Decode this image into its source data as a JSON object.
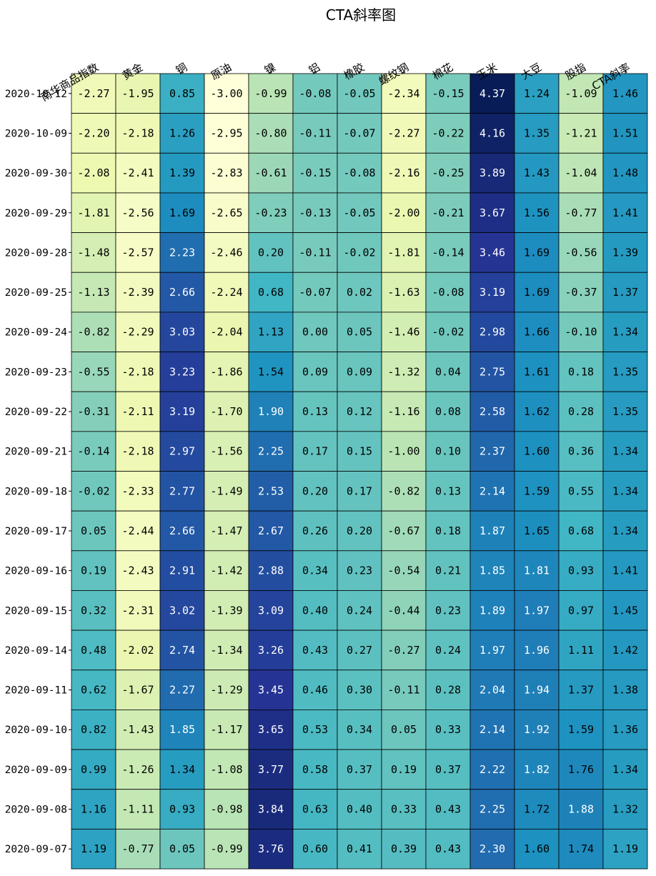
{
  "chart_data": {
    "type": "heatmap",
    "title": "CTA斜率图",
    "columns": [
      "南华商品指数",
      "黄金",
      "铜",
      "原油",
      "镍",
      "铝",
      "橡胶",
      "螺纹钢",
      "棉花",
      "玉米",
      "大豆",
      "股指",
      "CTA斜率"
    ],
    "rows": [
      "2020-10-12",
      "2020-10-09",
      "2020-09-30",
      "2020-09-29",
      "2020-09-28",
      "2020-09-25",
      "2020-09-24",
      "2020-09-23",
      "2020-09-22",
      "2020-09-21",
      "2020-09-18",
      "2020-09-17",
      "2020-09-16",
      "2020-09-15",
      "2020-09-14",
      "2020-09-11",
      "2020-09-10",
      "2020-09-09",
      "2020-09-08",
      "2020-09-07"
    ],
    "values": [
      [
        -2.27,
        -1.95,
        0.85,
        -3.0,
        -0.99,
        -0.08,
        -0.05,
        -2.34,
        -0.15,
        4.37,
        1.24,
        -1.09,
        1.46
      ],
      [
        -2.2,
        -2.18,
        1.26,
        -2.95,
        -0.8,
        -0.11,
        -0.07,
        -2.27,
        -0.22,
        4.16,
        1.35,
        -1.21,
        1.51
      ],
      [
        -2.08,
        -2.41,
        1.39,
        -2.83,
        -0.61,
        -0.15,
        -0.08,
        -2.16,
        -0.25,
        3.89,
        1.43,
        -1.04,
        1.48
      ],
      [
        -1.81,
        -2.56,
        1.69,
        -2.65,
        -0.23,
        -0.13,
        -0.05,
        -2.0,
        -0.21,
        3.67,
        1.56,
        -0.77,
        1.41
      ],
      [
        -1.48,
        -2.57,
        2.23,
        -2.46,
        0.2,
        -0.11,
        -0.02,
        -1.81,
        -0.14,
        3.46,
        1.69,
        -0.56,
        1.39
      ],
      [
        -1.13,
        -2.39,
        2.66,
        -2.24,
        0.68,
        -0.07,
        0.02,
        -1.63,
        -0.08,
        3.19,
        1.69,
        -0.37,
        1.37
      ],
      [
        -0.82,
        -2.29,
        3.03,
        -2.04,
        1.13,
        0.0,
        0.05,
        -1.46,
        -0.02,
        2.98,
        1.66,
        -0.1,
        1.34
      ],
      [
        -0.55,
        -2.18,
        3.23,
        -1.86,
        1.54,
        0.09,
        0.09,
        -1.32,
        0.04,
        2.75,
        1.61,
        0.18,
        1.35
      ],
      [
        -0.31,
        -2.11,
        3.19,
        -1.7,
        1.9,
        0.13,
        0.12,
        -1.16,
        0.08,
        2.58,
        1.62,
        0.28,
        1.35
      ],
      [
        -0.14,
        -2.18,
        2.97,
        -1.56,
        2.25,
        0.17,
        0.15,
        -1.0,
        0.1,
        2.37,
        1.6,
        0.36,
        1.34
      ],
      [
        -0.02,
        -2.33,
        2.77,
        -1.49,
        2.53,
        0.2,
        0.17,
        -0.82,
        0.13,
        2.14,
        1.59,
        0.55,
        1.34
      ],
      [
        0.05,
        -2.44,
        2.66,
        -1.47,
        2.67,
        0.26,
        0.2,
        -0.67,
        0.18,
        1.87,
        1.65,
        0.68,
        1.34
      ],
      [
        0.19,
        -2.43,
        2.91,
        -1.42,
        2.88,
        0.34,
        0.23,
        -0.54,
        0.21,
        1.85,
        1.81,
        0.93,
        1.41
      ],
      [
        0.32,
        -2.31,
        3.02,
        -1.39,
        3.09,
        0.4,
        0.24,
        -0.44,
        0.23,
        1.89,
        1.97,
        0.97,
        1.45
      ],
      [
        0.48,
        -2.02,
        2.74,
        -1.34,
        3.26,
        0.43,
        0.27,
        -0.27,
        0.24,
        1.97,
        1.96,
        1.11,
        1.42
      ],
      [
        0.62,
        -1.67,
        2.27,
        -1.29,
        3.45,
        0.46,
        0.3,
        -0.11,
        0.28,
        2.04,
        1.94,
        1.37,
        1.38
      ],
      [
        0.82,
        -1.43,
        1.85,
        -1.17,
        3.65,
        0.53,
        0.34,
        0.05,
        0.33,
        2.14,
        1.92,
        1.59,
        1.36
      ],
      [
        0.99,
        -1.26,
        1.34,
        -1.08,
        3.77,
        0.58,
        0.37,
        0.19,
        0.37,
        2.22,
        1.82,
        1.76,
        1.34
      ],
      [
        1.16,
        -1.11,
        0.93,
        -0.98,
        3.84,
        0.63,
        0.4,
        0.33,
        0.43,
        2.25,
        1.72,
        1.88,
        1.32
      ],
      [
        1.19,
        -0.77,
        0.05,
        -0.99,
        3.76,
        0.6,
        0.41,
        0.39,
        0.43,
        2.3,
        1.6,
        1.74,
        1.19
      ]
    ],
    "colormap": [
      "#ffffd9",
      "#edf8b1",
      "#c7e9b4",
      "#7fcdbb",
      "#41b6c4",
      "#1d91c0",
      "#225ea8",
      "#253494",
      "#081d58"
    ],
    "value_range": [
      -3.0,
      4.37
    ],
    "value_format": "0.00",
    "grid": true,
    "legend": "none"
  }
}
